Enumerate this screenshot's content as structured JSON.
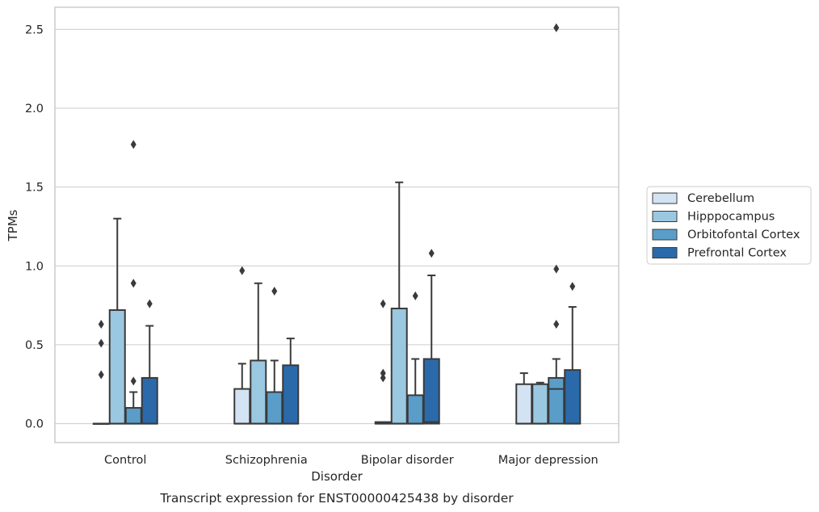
{
  "chart_data": {
    "type": "box",
    "caption": "Transcript expression for ENST00000425438 by disorder",
    "xlabel": "Disorder",
    "ylabel": "TPMs",
    "ylim": [
      -0.12,
      2.64
    ],
    "yticks": [
      0.0,
      0.5,
      1.0,
      1.5,
      2.0,
      2.5
    ],
    "ytick_labels": [
      "0.0",
      "0.5",
      "1.0",
      "1.5",
      "2.0",
      "2.5"
    ],
    "grid": "horizontal",
    "legend_position": "right",
    "categories": [
      "Control",
      "Schizophrenia",
      "Bipolar disorder",
      "Major depression"
    ],
    "series": [
      {
        "name": "Cerebellum",
        "color": "#d3e3f3",
        "boxes": [
          {
            "whisker_low": 0.0,
            "q1": 0.0,
            "median": 0.0,
            "q3": 0.0,
            "whisker_high": 0.0,
            "outliers": [
              0.31,
              0.51,
              0.63
            ]
          },
          {
            "whisker_low": 0.0,
            "q1": 0.0,
            "median": 0.0,
            "q3": 0.22,
            "whisker_high": 0.38,
            "outliers": [
              0.97
            ]
          },
          {
            "whisker_low": 0.0,
            "q1": 0.0,
            "median": 0.0,
            "q3": 0.01,
            "whisker_high": 0.01,
            "outliers": [
              0.29,
              0.32,
              0.76
            ]
          },
          {
            "whisker_low": 0.0,
            "q1": 0.0,
            "median": 0.0,
            "q3": 0.25,
            "whisker_high": 0.32,
            "outliers": []
          }
        ]
      },
      {
        "name": "Hipppocampus",
        "color": "#9ac8e0",
        "boxes": [
          {
            "whisker_low": 0.0,
            "q1": 0.0,
            "median": 0.0,
            "q3": 0.72,
            "whisker_high": 1.3,
            "outliers": []
          },
          {
            "whisker_low": 0.0,
            "q1": 0.0,
            "median": 0.0,
            "q3": 0.4,
            "whisker_high": 0.89,
            "outliers": []
          },
          {
            "whisker_low": 0.0,
            "q1": 0.0,
            "median": 0.0,
            "q3": 0.73,
            "whisker_high": 1.53,
            "outliers": []
          },
          {
            "whisker_low": 0.0,
            "q1": 0.0,
            "median": 0.0,
            "q3": 0.25,
            "whisker_high": 0.26,
            "outliers": []
          }
        ]
      },
      {
        "name": "Orbitofontal Cortex",
        "color": "#5a9dc9",
        "boxes": [
          {
            "whisker_low": 0.0,
            "q1": 0.0,
            "median": 0.0,
            "q3": 0.1,
            "whisker_high": 0.2,
            "outliers": [
              0.27,
              0.89,
              1.77
            ]
          },
          {
            "whisker_low": 0.0,
            "q1": 0.0,
            "median": 0.0,
            "q3": 0.2,
            "whisker_high": 0.4,
            "outliers": [
              0.84
            ]
          },
          {
            "whisker_low": 0.0,
            "q1": 0.0,
            "median": 0.0,
            "q3": 0.18,
            "whisker_high": 0.41,
            "outliers": [
              0.81
            ]
          },
          {
            "whisker_low": 0.0,
            "q1": 0.0,
            "median": 0.22,
            "q3": 0.29,
            "whisker_high": 0.41,
            "outliers": [
              0.63,
              0.98,
              2.51
            ]
          }
        ]
      },
      {
        "name": "Prefrontal Cortex",
        "color": "#2a6aab",
        "boxes": [
          {
            "whisker_low": 0.0,
            "q1": 0.0,
            "median": 0.0,
            "q3": 0.29,
            "whisker_high": 0.62,
            "outliers": [
              0.76
            ]
          },
          {
            "whisker_low": 0.0,
            "q1": 0.0,
            "median": 0.0,
            "q3": 0.37,
            "whisker_high": 0.54,
            "outliers": []
          },
          {
            "whisker_low": 0.0,
            "q1": 0.0,
            "median": 0.01,
            "q3": 0.41,
            "whisker_high": 0.94,
            "outliers": [
              1.08
            ]
          },
          {
            "whisker_low": 0.0,
            "q1": 0.0,
            "median": 0.0,
            "q3": 0.34,
            "whisker_high": 0.74,
            "outliers": [
              0.87
            ]
          }
        ]
      }
    ]
  }
}
